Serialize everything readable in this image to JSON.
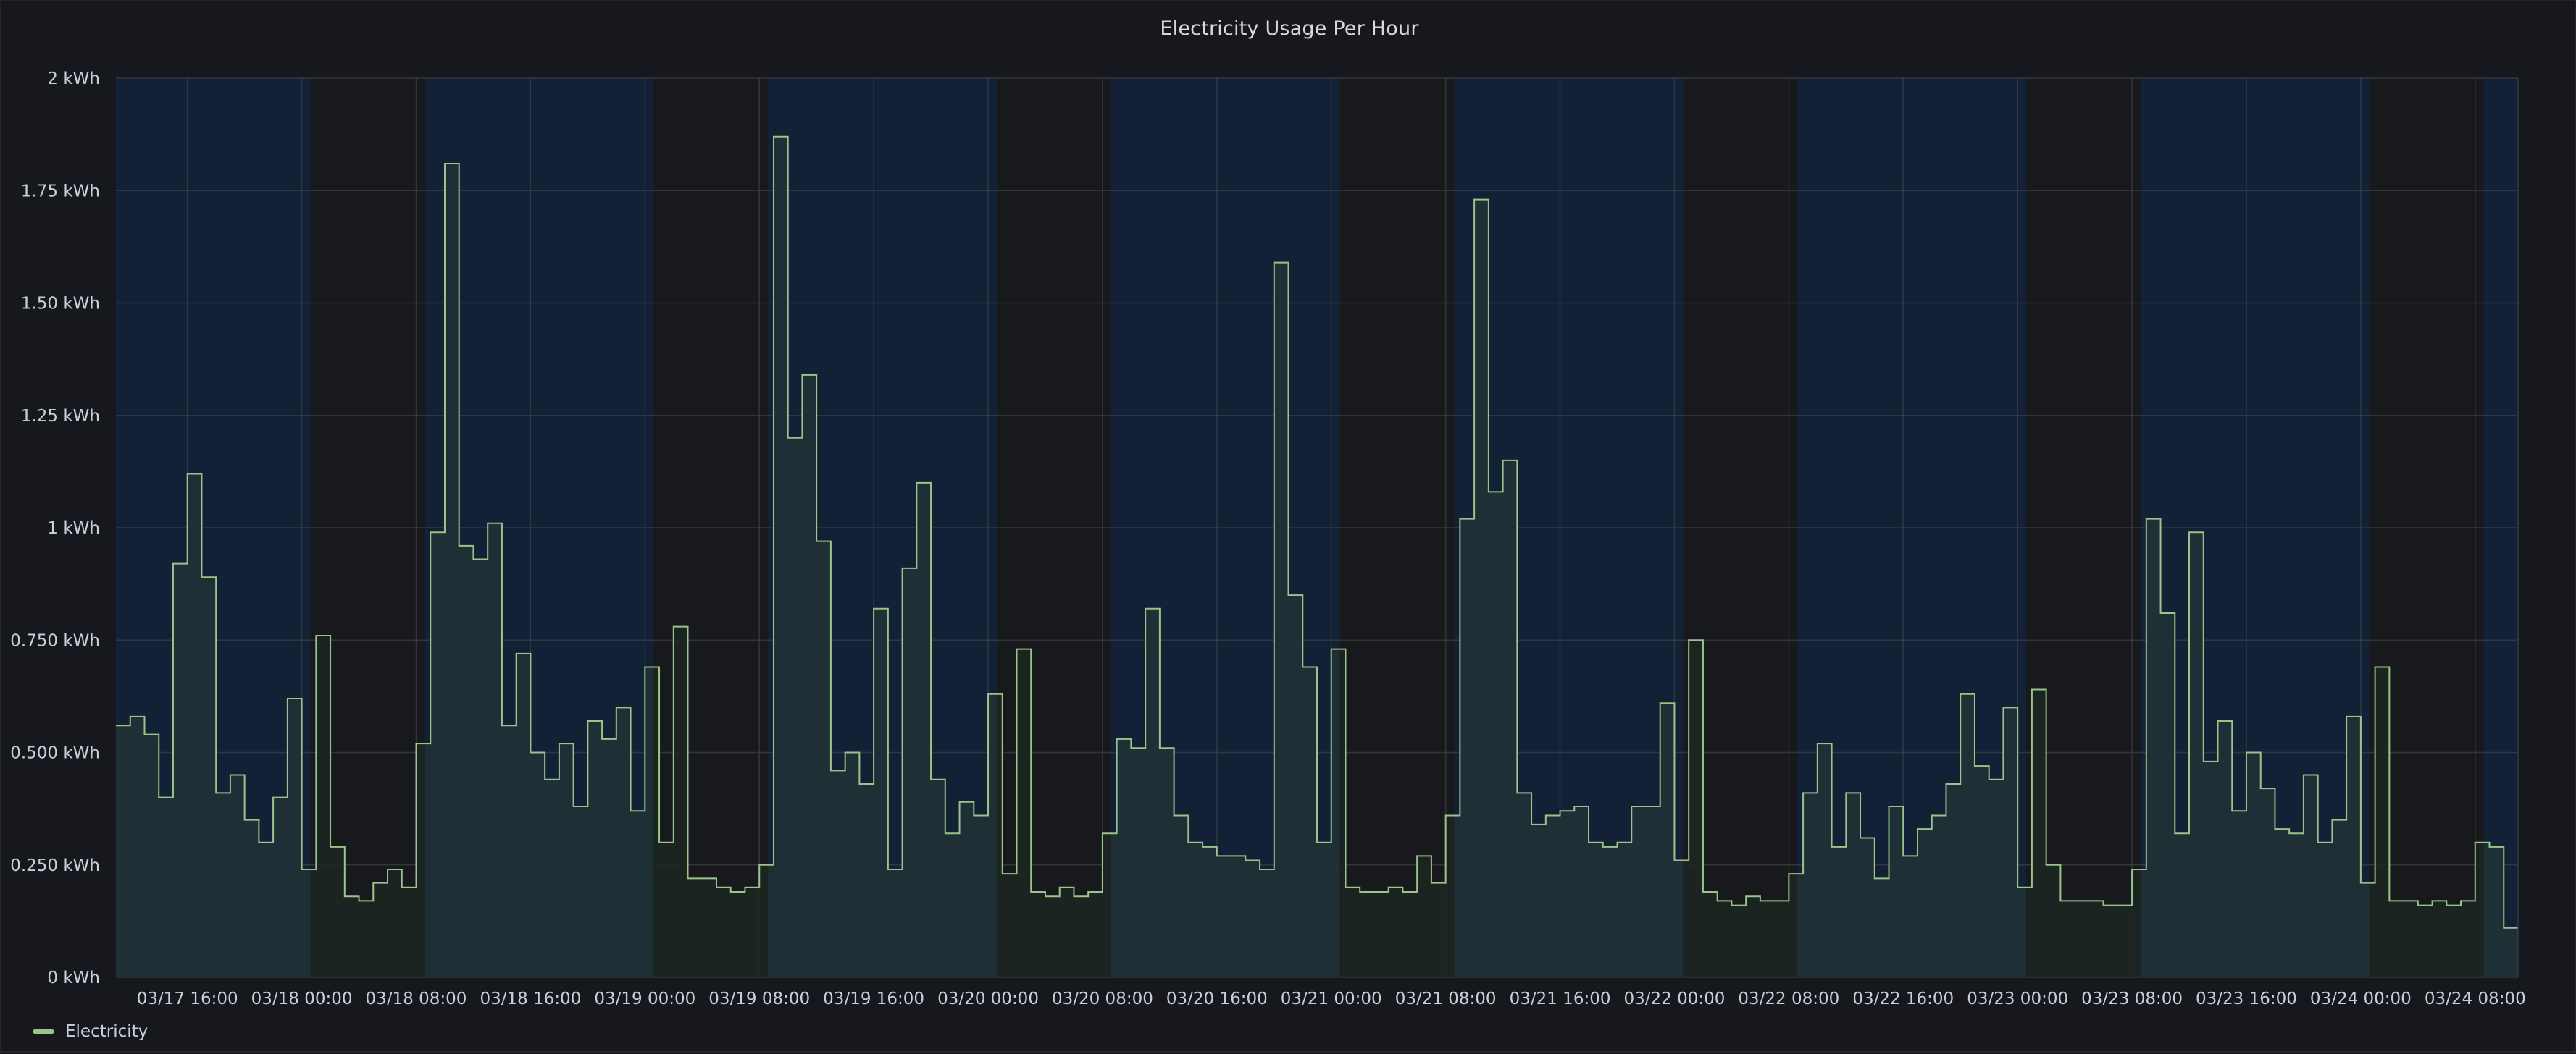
{
  "panel": {
    "title": "Electricity Usage Per Hour"
  },
  "colors": {
    "background": "#17181d",
    "day_band": "#132137",
    "night_band": "#18191c",
    "grid": "#3f4147",
    "line": "#9ac48a",
    "fill_day": "#1f3038",
    "fill_night": "#1d2622"
  },
  "legend": {
    "label": "Electricity",
    "placement": "bottom-left"
  },
  "chart_data": {
    "type": "area",
    "title": "Electricity Usage Per Hour",
    "series_name": "Electricity",
    "x_unit": "hour",
    "x_start": "03/17 11:00",
    "ylim": [
      0,
      2
    ],
    "grid": true,
    "y_ticks": [
      {
        "value": 0,
        "label": "0 kWh"
      },
      {
        "value": 0.25,
        "label": "0.250 kWh"
      },
      {
        "value": 0.5,
        "label": "0.500 kWh"
      },
      {
        "value": 0.75,
        "label": "0.750 kWh"
      },
      {
        "value": 1,
        "label": "1 kWh"
      },
      {
        "value": 1.25,
        "label": "1.25 kWh"
      },
      {
        "value": 1.5,
        "label": "1.50 kWh"
      },
      {
        "value": 1.75,
        "label": "1.75 kWh"
      },
      {
        "value": 2,
        "label": "2 kWh"
      }
    ],
    "x_ticks": [
      {
        "hour": 5,
        "label": "03/17 16:00"
      },
      {
        "hour": 13,
        "label": "03/18 00:00"
      },
      {
        "hour": 21,
        "label": "03/18 08:00"
      },
      {
        "hour": 29,
        "label": "03/18 16:00"
      },
      {
        "hour": 37,
        "label": "03/19 00:00"
      },
      {
        "hour": 45,
        "label": "03/19 08:00"
      },
      {
        "hour": 53,
        "label": "03/19 16:00"
      },
      {
        "hour": 61,
        "label": "03/20 00:00"
      },
      {
        "hour": 69,
        "label": "03/20 08:00"
      },
      {
        "hour": 77,
        "label": "03/20 16:00"
      },
      {
        "hour": 85,
        "label": "03/21 00:00"
      },
      {
        "hour": 93,
        "label": "03/21 08:00"
      },
      {
        "hour": 101,
        "label": "03/21 16:00"
      },
      {
        "hour": 109,
        "label": "03/22 00:00"
      },
      {
        "hour": 117,
        "label": "03/22 08:00"
      },
      {
        "hour": 125,
        "label": "03/22 16:00"
      },
      {
        "hour": 133,
        "label": "03/23 00:00"
      },
      {
        "hour": 141,
        "label": "03/23 08:00"
      },
      {
        "hour": 149,
        "label": "03/23 16:00"
      },
      {
        "hour": 157,
        "label": "03/24 00:00"
      },
      {
        "hour": 165,
        "label": "03/24 08:00"
      }
    ],
    "day_bands": [
      [
        0,
        13.6
      ],
      [
        21.6,
        37.6
      ],
      [
        45.6,
        61.6
      ],
      [
        69.6,
        85.6
      ],
      [
        93.6,
        109.6
      ],
      [
        117.6,
        133.6
      ],
      [
        141.6,
        157.6
      ],
      [
        165.6,
        168
      ]
    ],
    "values": [
      0.56,
      0.58,
      0.54,
      0.4,
      0.92,
      1.12,
      0.89,
      0.41,
      0.45,
      0.35,
      0.3,
      0.4,
      0.62,
      0.24,
      0.76,
      0.29,
      0.18,
      0.17,
      0.21,
      0.24,
      0.2,
      0.52,
      0.99,
      1.81,
      0.96,
      0.93,
      1.01,
      0.56,
      0.72,
      0.5,
      0.44,
      0.52,
      0.38,
      0.57,
      0.53,
      0.6,
      0.37,
      0.69,
      0.3,
      0.78,
      0.22,
      0.22,
      0.2,
      0.19,
      0.2,
      0.25,
      1.87,
      1.2,
      1.34,
      0.97,
      0.46,
      0.5,
      0.43,
      0.82,
      0.24,
      0.91,
      1.1,
      0.44,
      0.32,
      0.39,
      0.36,
      0.63,
      0.23,
      0.73,
      0.19,
      0.18,
      0.2,
      0.18,
      0.19,
      0.32,
      0.53,
      0.51,
      0.82,
      0.51,
      0.36,
      0.3,
      0.29,
      0.27,
      0.27,
      0.26,
      0.24,
      1.59,
      0.85,
      0.69,
      0.3,
      0.73,
      0.2,
      0.19,
      0.19,
      0.2,
      0.19,
      0.27,
      0.21,
      0.36,
      1.02,
      1.73,
      1.08,
      1.15,
      0.41,
      0.34,
      0.36,
      0.37,
      0.38,
      0.3,
      0.29,
      0.3,
      0.38,
      0.38,
      0.61,
      0.26,
      0.75,
      0.19,
      0.17,
      0.16,
      0.18,
      0.17,
      0.17,
      0.23,
      0.41,
      0.52,
      0.29,
      0.41,
      0.31,
      0.22,
      0.38,
      0.27,
      0.33,
      0.36,
      0.43,
      0.63,
      0.47,
      0.44,
      0.6,
      0.2,
      0.64,
      0.25,
      0.17,
      0.17,
      0.17,
      0.16,
      0.16,
      0.24,
      1.02,
      0.81,
      0.32,
      0.99,
      0.48,
      0.57,
      0.37,
      0.5,
      0.42,
      0.33,
      0.32,
      0.45,
      0.3,
      0.35,
      0.58,
      0.21,
      0.69,
      0.17,
      0.17,
      0.16,
      0.17,
      0.16,
      0.17,
      0.3,
      0.29,
      0.11
    ]
  }
}
